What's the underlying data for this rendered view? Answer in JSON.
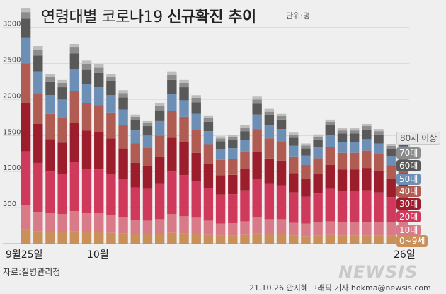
{
  "title_regular": "연령대별 코로나19",
  "title_bold": "신규확진 추이",
  "unit": "단위:명",
  "source": "자료:질병관리청",
  "credit": "21.10.26 안지혜 그래픽 기자 hokma@newsis.com",
  "watermark": "NEWSIS",
  "chart_data": {
    "type": "bar",
    "stacked": true,
    "ylim": [
      0,
      3300
    ],
    "yticks": [
      500,
      1000,
      1500,
      2000,
      2500,
      3000
    ],
    "x_labels": [
      "9월25일",
      "10월",
      "26일"
    ],
    "x": [
      "9/25",
      "9/26",
      "9/27",
      "9/28",
      "9/29",
      "9/30",
      "10/1",
      "10/2",
      "10/3",
      "10/4",
      "10/5",
      "10/6",
      "10/7",
      "10/8",
      "10/9",
      "10/10",
      "10/11",
      "10/12",
      "10/13",
      "10/14",
      "10/15",
      "10/16",
      "10/17",
      "10/18",
      "10/19",
      "10/20",
      "10/21",
      "10/22",
      "10/23",
      "10/24",
      "10/25",
      "10/26"
    ],
    "series": [
      {
        "name": "0~9세",
        "color": "#c9905a",
        "values": [
          200,
          170,
          160,
          160,
          170,
          160,
          160,
          150,
          140,
          130,
          130,
          135,
          150,
          140,
          130,
          120,
          110,
          110,
          120,
          140,
          130,
          130,
          110,
          105,
          115,
          120,
          115,
          115,
          115,
          115,
          110,
          130
        ]
      },
      {
        "name": "10대",
        "color": "#d97a88",
        "values": [
          340,
          270,
          260,
          250,
          280,
          270,
          270,
          250,
          230,
          200,
          190,
          205,
          260,
          240,
          230,
          200,
          170,
          175,
          190,
          230,
          210,
          210,
          180,
          175,
          180,
          190,
          185,
          185,
          185,
          185,
          185,
          190
        ]
      },
      {
        "name": "20대",
        "color": "#cf3a5c",
        "values": [
          740,
          680,
          580,
          560,
          680,
          610,
          600,
          570,
          530,
          450,
          440,
          490,
          590,
          570,
          510,
          450,
          400,
          400,
          430,
          520,
          490,
          470,
          420,
          370,
          400,
          450,
          430,
          430,
          440,
          410,
          350,
          390
        ]
      },
      {
        "name": "30대",
        "color": "#9c1e2c",
        "values": [
          670,
          540,
          450,
          430,
          540,
          530,
          520,
          490,
          420,
          340,
          320,
          370,
          470,
          460,
          390,
          340,
          270,
          270,
          300,
          390,
          350,
          340,
          270,
          250,
          270,
          330,
          300,
          300,
          310,
          300,
          250,
          270
        ]
      },
      {
        "name": "40대",
        "color": "#b05c52",
        "values": [
          550,
          430,
          350,
          340,
          450,
          380,
          370,
          360,
          320,
          270,
          250,
          300,
          370,
          350,
          320,
          270,
          210,
          220,
          240,
          310,
          280,
          270,
          230,
          190,
          220,
          250,
          230,
          230,
          240,
          230,
          190,
          220
        ]
      },
      {
        "name": "50대",
        "color": "#6d8fb6",
        "values": [
          360,
          300,
          260,
          260,
          300,
          260,
          250,
          240,
          220,
          180,
          170,
          200,
          240,
          230,
          220,
          180,
          150,
          150,
          160,
          200,
          180,
          170,
          150,
          130,
          150,
          170,
          150,
          150,
          160,
          150,
          130,
          150
        ]
      },
      {
        "name": "60대",
        "color": "#595959",
        "values": [
          260,
          220,
          180,
          170,
          220,
          200,
          200,
          190,
          170,
          140,
          130,
          150,
          190,
          180,
          160,
          130,
          110,
          110,
          120,
          150,
          140,
          130,
          110,
          100,
          110,
          130,
          120,
          120,
          130,
          120,
          100,
          110
        ]
      },
      {
        "name": "70대",
        "color": "#8c8c8c",
        "values": [
          90,
          80,
          70,
          60,
          80,
          80,
          70,
          60,
          60,
          50,
          40,
          60,
          70,
          60,
          60,
          50,
          40,
          40,
          50,
          60,
          50,
          50,
          40,
          40,
          40,
          50,
          40,
          40,
          50,
          50,
          40,
          40
        ]
      },
      {
        "name": "80세 이상",
        "color": "#bdbdbd",
        "values": [
          60,
          50,
          40,
          40,
          50,
          50,
          50,
          40,
          40,
          30,
          30,
          40,
          50,
          40,
          40,
          30,
          30,
          30,
          30,
          40,
          40,
          30,
          30,
          30,
          30,
          30,
          30,
          30,
          30,
          30,
          30,
          30
        ]
      }
    ]
  }
}
